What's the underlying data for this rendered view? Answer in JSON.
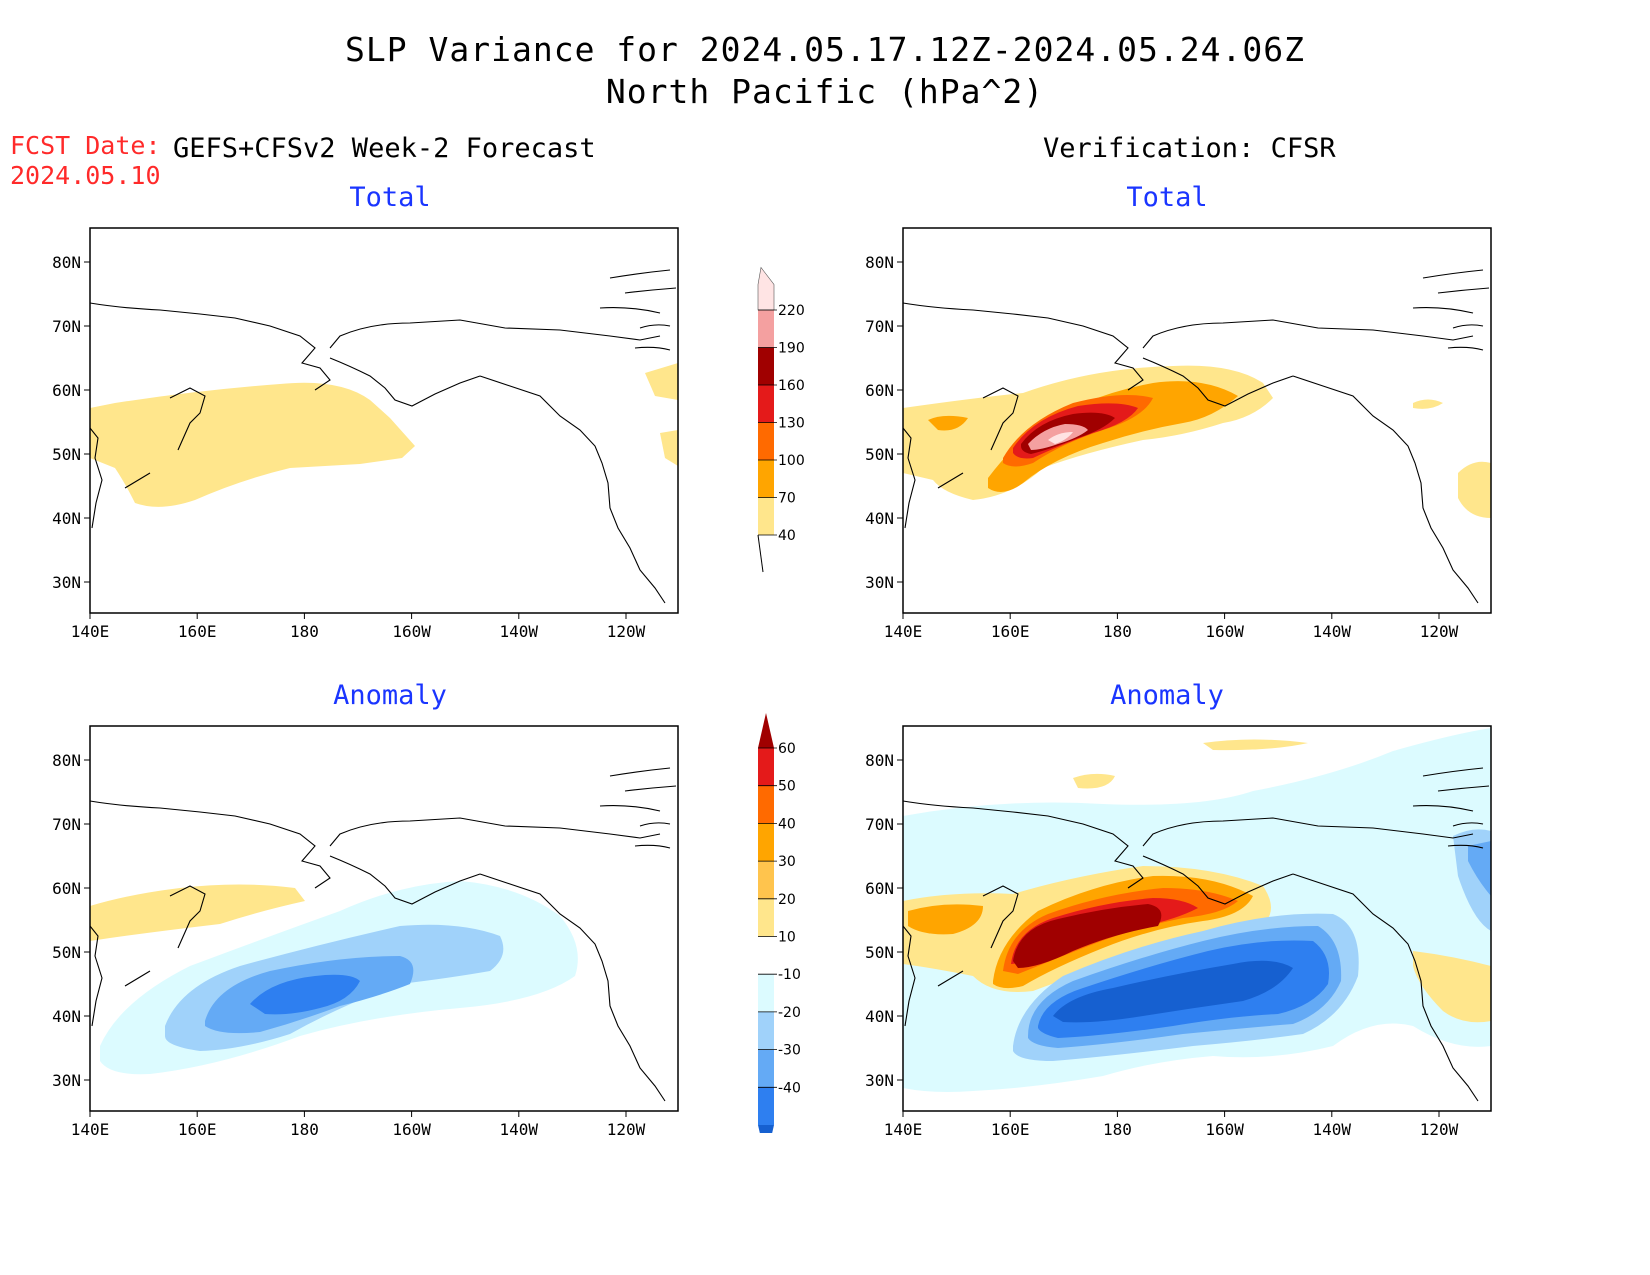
{
  "header": {
    "title_line1": "SLP Variance for 2024.05.17.12Z-2024.05.24.06Z",
    "title_line2": "North Pacific (hPa^2)",
    "fcst_label": "FCST Date:",
    "fcst_date": "2024.05.10",
    "left_subtitle": "GEFS+CFSv2 Week-2 Forecast",
    "right_subtitle": "Verification: CFSR"
  },
  "panels": {
    "forecast_total": {
      "title": "Total"
    },
    "forecast_anomaly": {
      "title": "Anomaly"
    },
    "verif_total": {
      "title": "Total"
    },
    "verif_anomaly": {
      "title": "Anomaly"
    }
  },
  "map_axes": {
    "lon_ticks": [
      "140E",
      "160E",
      "180",
      "160W",
      "140W",
      "120W"
    ],
    "lat_ticks": [
      "80N",
      "70N",
      "60N",
      "50N",
      "40N",
      "30N"
    ]
  },
  "colorbars": {
    "total": {
      "levels": [
        "40",
        "70",
        "100",
        "130",
        "160",
        "190",
        "220"
      ],
      "colors": [
        "#ffe68c",
        "#ffa500",
        "#ff6a00",
        "#e41a1a",
        "#a00000",
        "#f4a0a0",
        "#ffe4e4"
      ]
    },
    "anomaly": {
      "levels": [
        "60",
        "50",
        "40",
        "30",
        "20",
        "10",
        "-10",
        "-20",
        "-30",
        "-40"
      ],
      "colors": [
        "#a00000",
        "#e41a1a",
        "#ff6a00",
        "#ffa500",
        "#ffc44d",
        "#ffe68c",
        "#ffffff",
        "#dcfbff",
        "#a0d2fa",
        "#64aaf5",
        "#2e7ff0",
        "#1660d0"
      ]
    }
  }
}
